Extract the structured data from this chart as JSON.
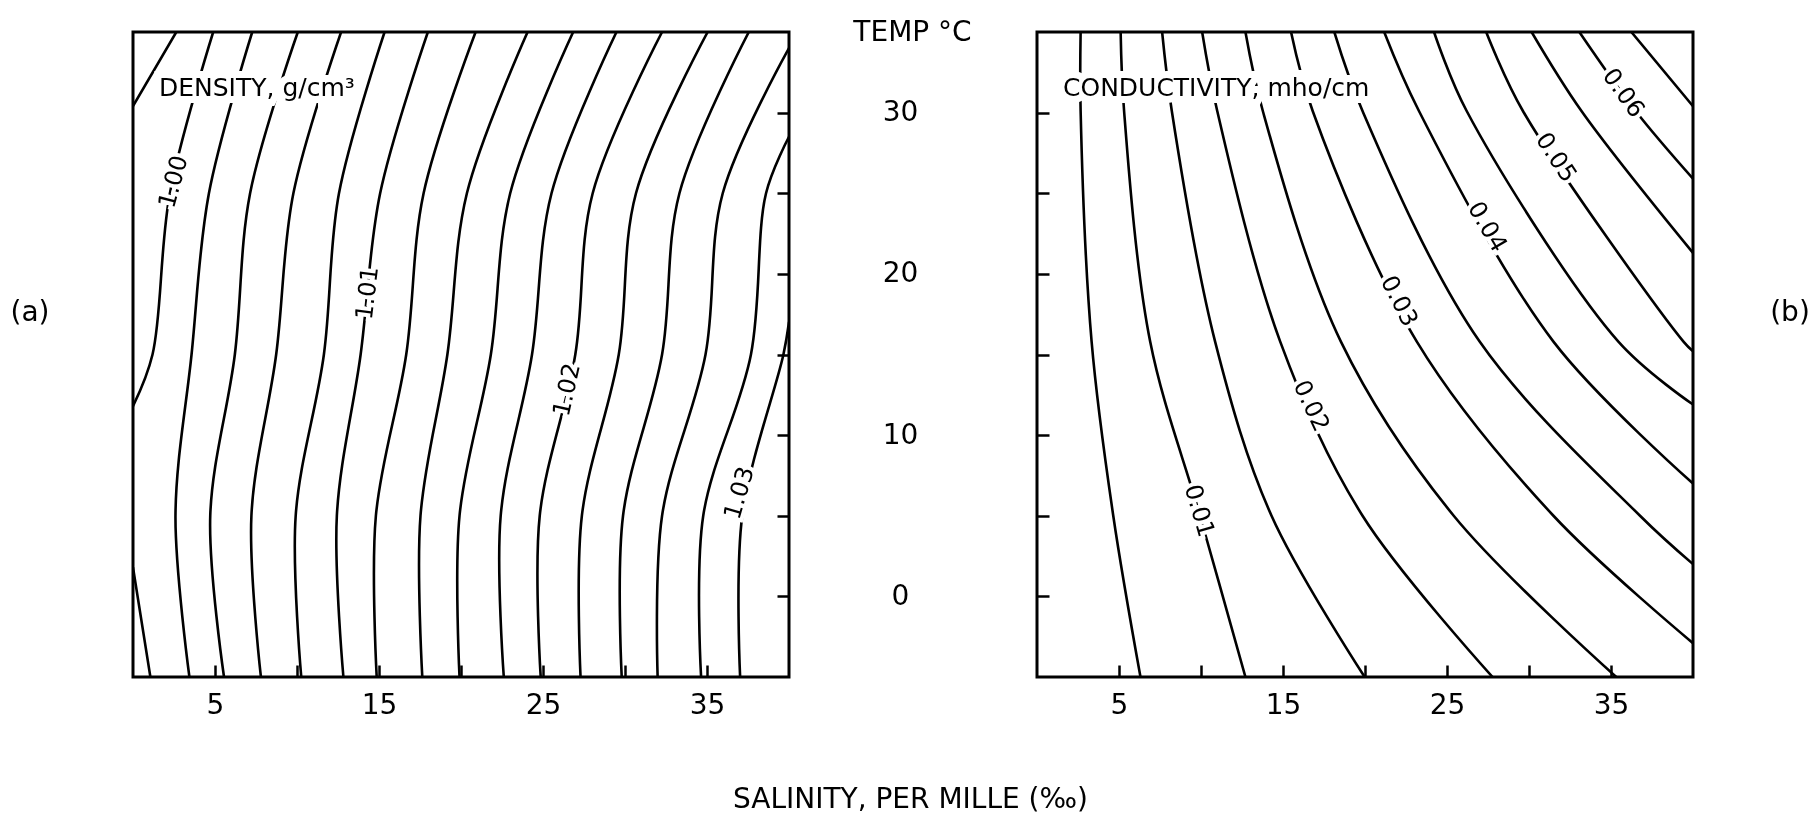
{
  "chart_data": [
    {
      "type": "line",
      "title": "DENSITY, g/cm³",
      "xlabel": "SALINITY, PER MILLE (‰)",
      "ylabel": "TEMP °C",
      "color": "#000000",
      "marker": "none",
      "line_style": "solid",
      "grid": false,
      "xlim": [
        0,
        40
      ],
      "xticks": [
        5,
        {
          "value": 10,
          "label": null
        },
        15,
        {
          "value": 20,
          "label": null
        },
        25,
        {
          "value": 30,
          "label": null
        },
        35
      ],
      "ylim": [
        -5,
        35
      ],
      "yticks": [
        0,
        {
          "value": 5,
          "label": null
        },
        10,
        {
          "value": 15,
          "label": null
        },
        20,
        {
          "value": 25,
          "label": null
        },
        30
      ],
      "annotations": [
        "(a)",
        {
          "text": "1.00",
          "x": 2.5,
          "y": 25.7
        },
        {
          "text": "1.01",
          "x": 14.33,
          "y": 18.8
        },
        {
          "text": "1.02",
          "x": 26.49,
          "y": 12.8
        },
        {
          "text": "1.03",
          "x": 37,
          "y": 6.4
        }
      ],
      "series": [
        {
          "x": [
            0,
            2.64
          ],
          "values": [
            30.4,
            35
          ]
        },
        {
          "x": [
            0,
            1.19,
            2.25,
            4.89
          ],
          "values": [
            11.8,
            15,
            25,
            35
          ]
        },
        {
          "x": [
            1.06,
            0
          ],
          "values": [
            -5,
            1.8
          ]
        },
        {
          "x": [
            3.44,
            2.59,
            3.57,
            4.63,
            7.27
          ],
          "values": [
            -5,
            5,
            15,
            25,
            35
          ]
        },
        {
          "x": [
            5.55,
            4.71,
            6.21,
            7.14,
            10.05
          ],
          "values": [
            -5,
            5,
            15,
            25,
            35
          ]
        },
        {
          "x": [
            7.8,
            7.22,
            8.73,
            9.78,
            12.69
          ],
          "values": [
            -5,
            5,
            15,
            25,
            35
          ]
        },
        {
          "x": [
            10.26,
            9.92,
            11.64,
            12.56,
            15.34
          ],
          "values": [
            -5,
            5,
            15,
            25,
            35
          ]
        },
        {
          "x": [
            12.83,
            12.43,
            13.88,
            15.07,
            17.98
          ],
          "values": [
            -5,
            5,
            15,
            25,
            35
          ]
        },
        {
          "x": [
            14.86,
            14.81,
            16.66,
            17.72,
            20.89
          ],
          "values": [
            -5,
            5,
            15,
            25,
            35
          ]
        },
        {
          "x": [
            17.64,
            17.53,
            19.17,
            20.36,
            24.06
          ],
          "values": [
            -5,
            5,
            15,
            25,
            35
          ]
        },
        {
          "x": [
            19.91,
            19.91,
            21.82,
            23,
            26.84
          ],
          "values": [
            -5,
            5,
            15,
            25,
            35
          ]
        },
        {
          "x": [
            22.61,
            22.42,
            24.33,
            25.52,
            29.48
          ],
          "values": [
            -5,
            5,
            15,
            25,
            35
          ]
        },
        {
          "x": [
            24.86,
            24.8,
            26.97,
            28.03,
            32.26
          ],
          "values": [
            -5,
            5,
            15,
            25,
            35
          ]
        },
        {
          "x": [
            27.29,
            27.37,
            29.62,
            30.67,
            35.04
          ],
          "values": [
            -5,
            5,
            15,
            25,
            35
          ]
        },
        {
          "x": [
            29.8,
            29.88,
            32.26,
            33.32,
            37.55
          ],
          "values": [
            -5,
            5,
            15,
            25,
            35
          ]
        },
        {
          "x": [
            31.99,
            32.26,
            34.91,
            35.96,
            40
          ],
          "values": [
            -5,
            5,
            15,
            25,
            34
          ]
        },
        {
          "x": [
            34.64,
            34.77,
            37.68,
            38.6,
            40
          ],
          "values": [
            -5,
            5,
            15,
            25,
            28.5
          ]
        },
        {
          "x": [
            37.02,
            37.15,
            39.66,
            40
          ],
          "values": [
            -5,
            5,
            15,
            17
          ]
        }
      ]
    },
    {
      "type": "line",
      "title": "CONDUCTIVITY, mho/cm",
      "color": "#000000",
      "marker": "none",
      "line_style": "solid",
      "grid": false,
      "tick_labels": "x",
      "xlim": [
        0,
        40
      ],
      "xticks": [
        5,
        {
          "value": 10,
          "label": null
        },
        15,
        {
          "value": 20,
          "label": null
        },
        25,
        {
          "value": 30,
          "label": null
        },
        35
      ],
      "ylim": [
        -5,
        35
      ],
      "yticks": [
        0,
        {
          "value": 5,
          "label": null
        },
        10,
        {
          "value": 15,
          "label": null
        },
        20,
        {
          "value": 25,
          "label": null
        },
        30
      ],
      "annotations": [
        "(b)",
        {
          "text": "0.01",
          "x": 9.86,
          "y": 5.3
        },
        {
          "text": "0.02",
          "x": 16.69,
          "y": 11.8
        },
        {
          "text": "0.03",
          "x": 22.05,
          "y": 18.3
        },
        {
          "text": "0.04",
          "x": 27.42,
          "y": 22.9
        },
        {
          "text": "0.05",
          "x": 31.62,
          "y": 27.2
        },
        {
          "text": "0.06",
          "x": 35.73,
          "y": 31.2
        }
      ],
      "series": [
        {
          "x": [
            2.66,
            2.66,
            3.33,
            4.65,
            6.31
          ],
          "values": [
            35,
            30.1,
            15.8,
            5,
            -5
          ]
        },
        {
          "x": [
            5.1,
            5.31,
            6.9,
            9.94,
            12.71
          ],
          "values": [
            35,
            30.1,
            15.8,
            5,
            -5
          ]
        },
        {
          "x": [
            7.63,
            8.22,
            10.86,
            14.3,
            19.98
          ],
          "values": [
            35,
            30.1,
            15.8,
            5,
            -5
          ]
        },
        {
          "x": [
            10.07,
            10.99,
            14.83,
            19.85,
            27.78
          ],
          "values": [
            35,
            30.1,
            15.8,
            5,
            -5
          ]
        },
        {
          "x": [
            12.71,
            13.77,
            18.53,
            25.41,
            35.32
          ],
          "values": [
            35,
            30.1,
            15.8,
            5,
            -5
          ]
        },
        {
          "x": [
            15.49,
            16.81,
            23.16,
            31.49,
            40
          ],
          "values": [
            35,
            30.1,
            15.8,
            5,
            -2.9
          ]
        },
        {
          "x": [
            18.13,
            19.85,
            26.99,
            36.77,
            40
          ],
          "values": [
            35,
            30.1,
            15.8,
            5,
            2
          ]
        },
        {
          "x": [
            21.17,
            23.29,
            31.49,
            40
          ],
          "values": [
            35,
            30.1,
            15.8,
            7
          ]
        },
        {
          "x": [
            24.21,
            26.2,
            35.45,
            40
          ],
          "values": [
            35,
            30.1,
            15.8,
            11.9
          ]
        },
        {
          "x": [
            27.39,
            29.63,
            39.42,
            40
          ],
          "values": [
            35,
            30.1,
            15.8,
            15.2
          ]
        },
        {
          "x": [
            30.16,
            33.2,
            40
          ],
          "values": [
            35,
            30.1,
            21.3
          ]
        },
        {
          "x": [
            33.07,
            36.5,
            40
          ],
          "values": [
            35,
            30.1,
            25.9
          ]
        },
        {
          "x": [
            36.24,
            40
          ],
          "values": [
            35,
            30.4
          ]
        }
      ]
    }
  ]
}
